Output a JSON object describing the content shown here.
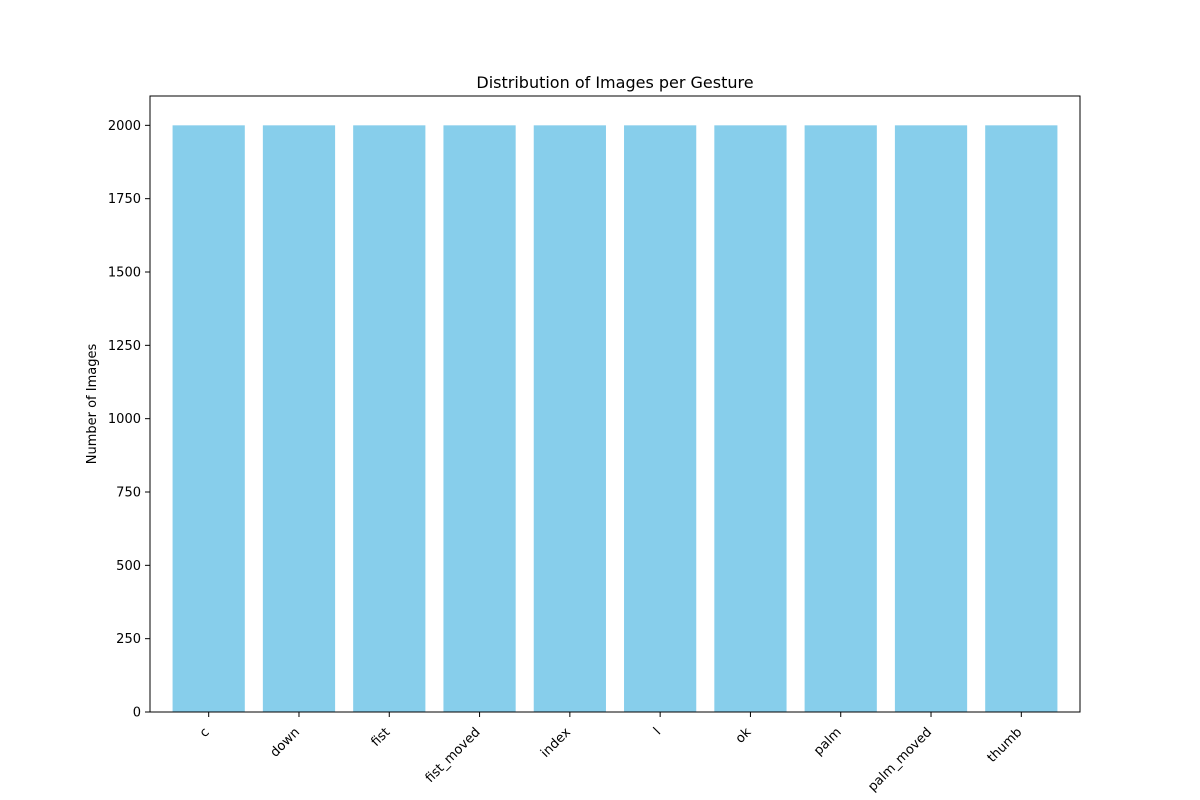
{
  "chart_data": {
    "type": "bar",
    "title": "Distribution of Images per Gesture",
    "xlabel": "",
    "ylabel": "Number of Images",
    "categories": [
      "c",
      "down",
      "fist",
      "fist_moved",
      "index",
      "l",
      "ok",
      "palm",
      "palm_moved",
      "thumb"
    ],
    "values": [
      2000,
      2000,
      2000,
      2000,
      2000,
      2000,
      2000,
      2000,
      2000,
      2000
    ],
    "ylim": [
      0,
      2100
    ],
    "yticks": [
      0,
      250,
      500,
      750,
      1000,
      1250,
      1500,
      1750,
      2000
    ],
    "bar_color": "#87CEEB",
    "grid": false,
    "legend": "none",
    "xtick_rotation": "45 degrees"
  }
}
